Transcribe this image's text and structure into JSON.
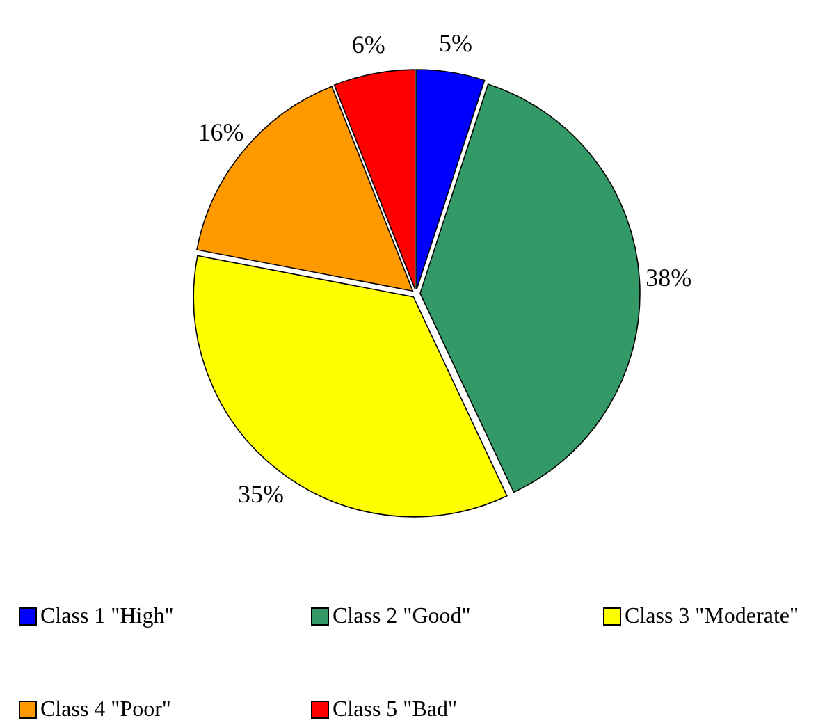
{
  "chart_data": {
    "type": "pie",
    "categories": [
      "Class 1 \"High\"",
      "Class 2 \"Good\"",
      "Class 3 \"Moderate\"",
      "Class 4 \"Poor\"",
      "Class 5 \"Bad\""
    ],
    "values": [
      5,
      38,
      35,
      16,
      6
    ],
    "colors": [
      "#0000ff",
      "#339966",
      "#ffff00",
      "#ff9900",
      "#ff0000"
    ],
    "value_labels": [
      "5%",
      "38%",
      "35%",
      "16%",
      "6%"
    ],
    "legend": "bottom"
  }
}
